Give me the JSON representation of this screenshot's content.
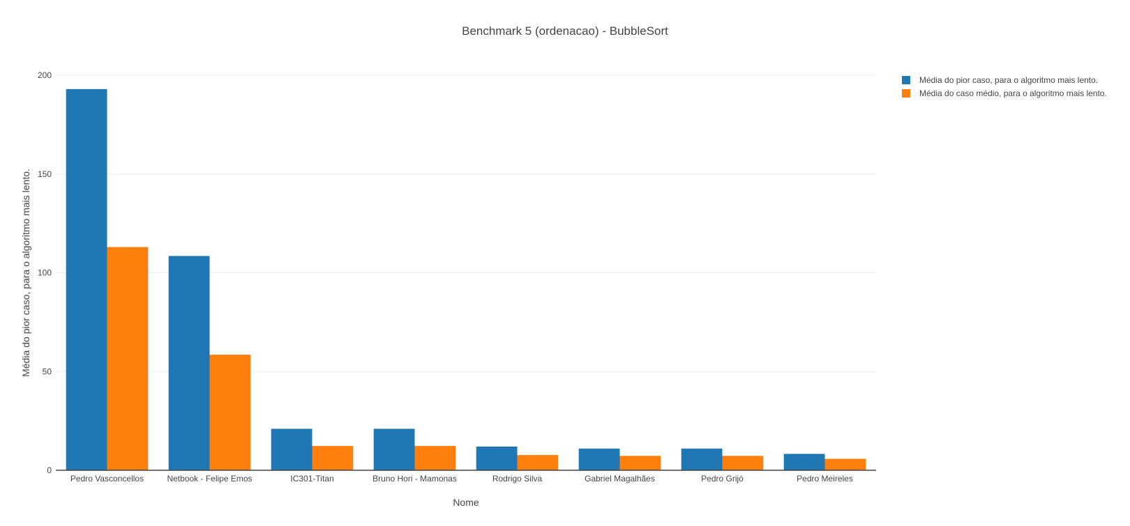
{
  "chart_data": {
    "type": "bar",
    "title": "Benchmark 5 (ordenacao) - BubbleSort",
    "xlabel": "Nome",
    "ylabel": "Média do pior caso, para o algoritmo mais lento.",
    "categories": [
      "Pedro Vasconcellos",
      "Netbook - Felipe Emos",
      "IC301-Titan",
      "Bruno Hori - Mamonas",
      "Rodrigo Silva",
      "Gabriel Magalhães",
      "Pedro Grijó",
      "Pedro Meireles"
    ],
    "series": [
      {
        "name": "Média do pior caso, para o algoritmo mais lento.",
        "color": "#1f77b4",
        "values": [
          193,
          108.5,
          21,
          21,
          12,
          11,
          11,
          8.3
        ]
      },
      {
        "name": "Média do caso médio, para o algoritmo mais lento.",
        "color": "#ff7f0e",
        "values": [
          113,
          58.5,
          12.3,
          12.3,
          7.7,
          7.3,
          7.3,
          5.8
        ]
      }
    ],
    "ylim": [
      0,
      200
    ],
    "yticks": [
      0,
      50,
      100,
      150,
      200
    ],
    "grid": true,
    "legend_position": "top-right"
  }
}
